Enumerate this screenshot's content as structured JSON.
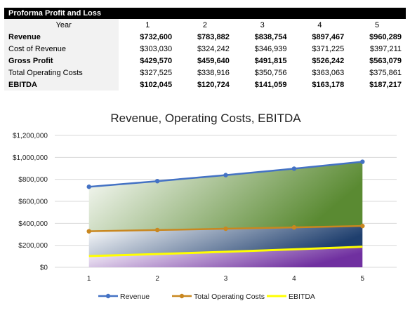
{
  "table": {
    "title": "Proforma Profit and Loss",
    "year_label": "Year",
    "years": [
      "1",
      "2",
      "3",
      "4",
      "5"
    ],
    "rows": [
      {
        "label": "Revenue",
        "bold": true,
        "values": [
          "$732,600",
          "$783,882",
          "$838,754",
          "$897,467",
          "$960,289"
        ]
      },
      {
        "label": "Cost of Revenue",
        "bold": false,
        "values": [
          "$303,030",
          "$324,242",
          "$346,939",
          "$371,225",
          "$397,211"
        ]
      },
      {
        "label": "Gross Profit",
        "bold": true,
        "values": [
          "$429,570",
          "$459,640",
          "$491,815",
          "$526,242",
          "$563,079"
        ]
      },
      {
        "label": "Total Operating Costs",
        "bold": false,
        "values": [
          "$327,525",
          "$338,916",
          "$350,756",
          "$363,063",
          "$375,861"
        ]
      },
      {
        "label": "EBITDA",
        "bold": true,
        "values": [
          "$102,045",
          "$120,724",
          "$141,059",
          "$163,178",
          "$187,217"
        ]
      }
    ]
  },
  "chart_data": {
    "type": "line",
    "title": "Revenue, Operating Costs, EBITDA",
    "x": [
      1,
      2,
      3,
      4,
      5
    ],
    "categories": [
      "1",
      "2",
      "3",
      "4",
      "5"
    ],
    "series": [
      {
        "name": "Revenue",
        "values": [
          732600,
          783882,
          838754,
          897467,
          960289
        ],
        "color": "#4472c4",
        "markers": true
      },
      {
        "name": "Total Operating Costs",
        "values": [
          327525,
          338916,
          350756,
          363063,
          375861
        ],
        "color": "#c9871f",
        "markers": true
      },
      {
        "name": "EBITDA",
        "values": [
          102045,
          120724,
          141059,
          163178,
          187217
        ],
        "color": "#ffff00",
        "markers": false
      }
    ],
    "ylim": [
      0,
      1200000
    ],
    "y_ticks": [
      0,
      200000,
      400000,
      600000,
      800000,
      1000000,
      1200000
    ],
    "y_tick_labels": [
      "$0",
      "$200,000",
      "$400,000",
      "$600,000",
      "$800,000",
      "$1,000,000",
      "$1,200,000"
    ],
    "grid": true,
    "legend_position": "bottom",
    "fill_colors": {
      "revenue_band": "#5a8a32",
      "cost_band": "#1f3f6e",
      "ebitda_band": "#7030a0"
    }
  }
}
